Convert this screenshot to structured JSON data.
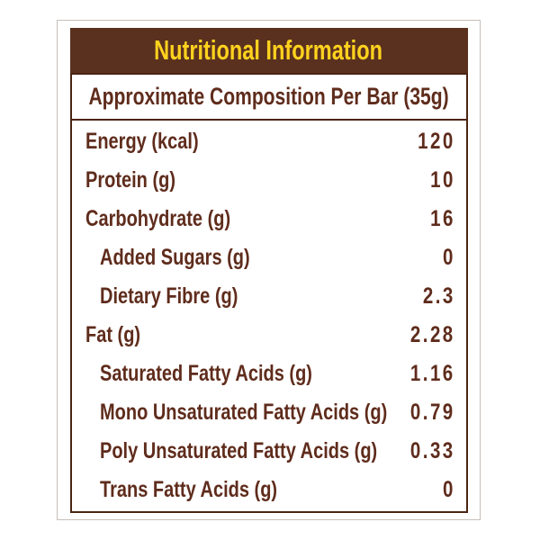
{
  "label": {
    "title": "Nutritional Information",
    "subtitle": "Approximate Composition Per Bar (35g)",
    "rows": [
      {
        "name": "Energy (kcal)",
        "value": "120",
        "indent": false
      },
      {
        "name": "Protein (g)",
        "value": "10",
        "indent": false
      },
      {
        "name": "Carbohydrate (g)",
        "value": "16",
        "indent": false
      },
      {
        "name": "Added Sugars (g)",
        "value": "0",
        "indent": true
      },
      {
        "name": "Dietary Fibre (g)",
        "value": "2.3",
        "indent": true
      },
      {
        "name": "Fat (g)",
        "value": "2.28",
        "indent": false
      },
      {
        "name": "Saturated Fatty Acids (g)",
        "value": "1.16",
        "indent": true
      },
      {
        "name": "Mono Unsaturated Fatty Acids (g)",
        "value": "0.79",
        "indent": true
      },
      {
        "name": "Poly Unsaturated Fatty Acids (g)",
        "value": "0.33",
        "indent": true
      },
      {
        "name": "Trans Fatty Acids (g)",
        "value": "0",
        "indent": true
      }
    ],
    "colors": {
      "header-bg": "#5a311f",
      "title-text": "#ffd21e",
      "body-text": "#5f2c1c",
      "border": "#4b2414",
      "frame": "#c7bfba",
      "page-bg": "#ffffff"
    }
  }
}
